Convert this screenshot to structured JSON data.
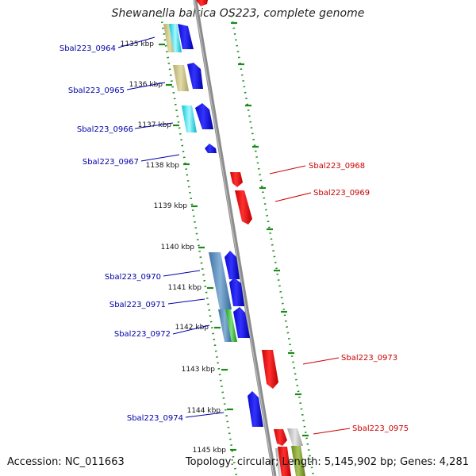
{
  "title": "Shewanella baltica OS223, complete genome",
  "footer": {
    "accession": "Accession: NC_011663",
    "summary": "Topology: circular; Length: 5,145,902 bp; Genes: 4,281"
  },
  "colors": {
    "backbone": "#8c8c8c",
    "ruler": "#1a8a1a",
    "forward_gene": "#0000ee",
    "reverse_gene": "#ee0000",
    "forward_label": "#0000aa",
    "reverse_label": "#cc0000"
  },
  "kbp_ticks": [
    "1135 kbp",
    "1136 kbp",
    "1137 kbp",
    "1138 kbp",
    "1139 kbp",
    "1140 kbp",
    "1141 kbp",
    "1142 kbp",
    "1143 kbp",
    "1144 kbp",
    "1145 kbp"
  ],
  "genes": [
    {
      "name": "Sbal223_0964",
      "strand": "forward"
    },
    {
      "name": "Sbal223_0965",
      "strand": "forward"
    },
    {
      "name": "Sbal223_0966",
      "strand": "forward"
    },
    {
      "name": "Sbal223_0967",
      "strand": "forward"
    },
    {
      "name": "Sbal223_0968",
      "strand": "reverse"
    },
    {
      "name": "Sbal223_0969",
      "strand": "reverse"
    },
    {
      "name": "Sbal223_0970",
      "strand": "forward"
    },
    {
      "name": "Sbal223_0971",
      "strand": "forward"
    },
    {
      "name": "Sbal223_0972",
      "strand": "forward"
    },
    {
      "name": "Sbal223_0973",
      "strand": "reverse"
    },
    {
      "name": "Sbal223_0974",
      "strand": "forward"
    },
    {
      "name": "Sbal223_0975",
      "strand": "reverse"
    }
  ]
}
